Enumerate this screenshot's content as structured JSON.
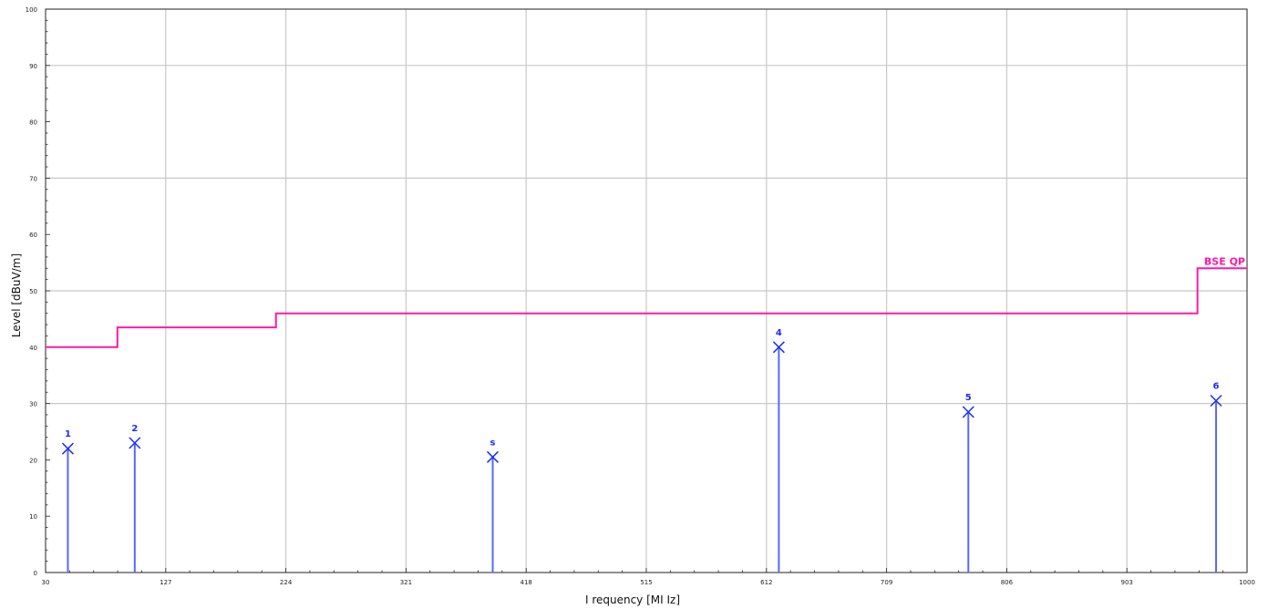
{
  "chart_data": {
    "type": "line",
    "xlabel": "I requency [MI Iz]",
    "ylabel": "Level [dBuV/m]",
    "xlim": [
      30,
      1000
    ],
    "ylim": [
      0,
      100
    ],
    "x_tick_labels": [
      "30",
      "127",
      "224",
      "321",
      "418",
      "515",
      "612",
      "709",
      "806",
      "903",
      "1000"
    ],
    "y_tick_labels": [
      "0",
      "10",
      "20",
      "30",
      "40",
      "50",
      "60",
      "70",
      "80",
      "90",
      "100"
    ],
    "grid": true,
    "colors": {
      "limit": "#ff1aa6",
      "markers": "#1a2cff",
      "grid": "#c8c8c8"
    },
    "series": [
      {
        "name": "BSE QP",
        "style": "step",
        "x": [
          30,
          88,
          88,
          216,
          216,
          960,
          960,
          1000
        ],
        "y": [
          40,
          40,
          43.5,
          43.5,
          46,
          46,
          54,
          54
        ]
      }
    ],
    "markers": [
      {
        "label": "1",
        "x": 48,
        "y": 22
      },
      {
        "label": "2",
        "x": 102,
        "y": 23
      },
      {
        "label": "s",
        "x": 391,
        "y": 20.5
      },
      {
        "label": "4",
        "x": 622,
        "y": 40
      },
      {
        "label": "5",
        "x": 775,
        "y": 28.5
      },
      {
        "label": "6",
        "x": 975,
        "y": 30.5
      }
    ]
  }
}
